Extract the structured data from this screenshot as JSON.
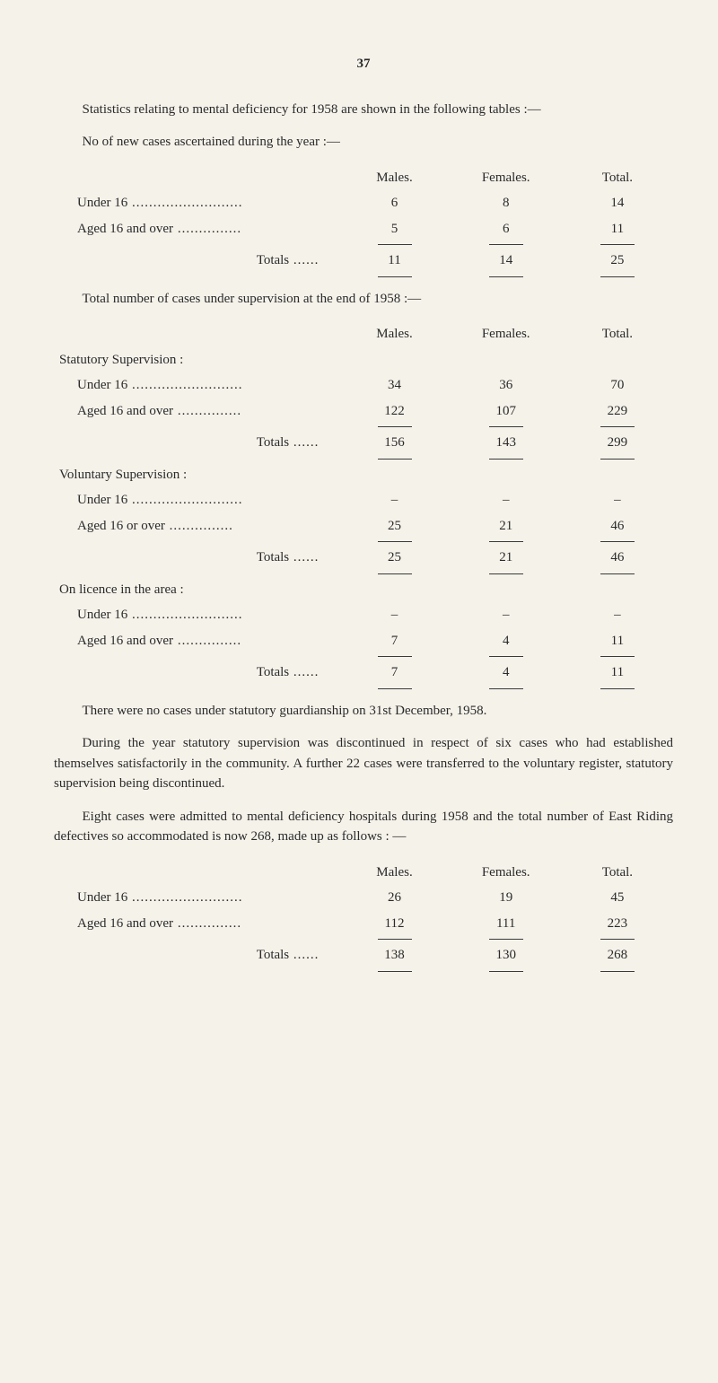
{
  "page_number": "37",
  "intro_para": "Statistics relating to mental deficiency for 1958 are shown in the following tables :—",
  "new_cases": {
    "heading": "No of new cases ascertained during the year :—",
    "cols": {
      "males": "Males.",
      "females": "Females.",
      "total": "Total."
    },
    "rows": {
      "under16_label": "Under 16",
      "under16": {
        "m": "6",
        "f": "8",
        "t": "14"
      },
      "aged16_label": "Aged 16 and over",
      "aged16": {
        "m": "5",
        "f": "6",
        "t": "11"
      },
      "totals_label": "Totals",
      "totals": {
        "m": "11",
        "f": "14",
        "t": "25"
      }
    }
  },
  "total_super": {
    "heading": "Total number of cases under supervision at the end of 1958 :—",
    "cols": {
      "males": "Males.",
      "females": "Females.",
      "total": "Total."
    },
    "statutory": {
      "label": "Statutory Supervision :",
      "under16_label": "Under 16",
      "under16": {
        "m": "34",
        "f": "36",
        "t": "70"
      },
      "aged16_label": "Aged 16 and over",
      "aged16": {
        "m": "122",
        "f": "107",
        "t": "229"
      },
      "totals_label": "Totals",
      "totals": {
        "m": "156",
        "f": "143",
        "t": "299"
      }
    },
    "voluntary": {
      "label": "Voluntary Supervision :",
      "under16_label": "Under 16",
      "under16": {
        "m": "–",
        "f": "–",
        "t": "–"
      },
      "aged16_label": "Aged 16 or over",
      "aged16": {
        "m": "25",
        "f": "21",
        "t": "46"
      },
      "totals_label": "Totals",
      "totals": {
        "m": "25",
        "f": "21",
        "t": "46"
      }
    },
    "licence": {
      "label": "On licence in the area :",
      "under16_label": "Under 16",
      "under16": {
        "m": "–",
        "f": "–",
        "t": "–"
      },
      "aged16_label": "Aged 16 and over",
      "aged16": {
        "m": "7",
        "f": "4",
        "t": "11"
      },
      "totals_label": "Totals",
      "totals": {
        "m": "7",
        "f": "4",
        "t": "11"
      }
    }
  },
  "para_guardianship": "There were no cases under statutory guardianship on 31st December, 1958.",
  "para_discontinued": "During the year statutory supervision was discontinued in respect of six cases who had established themselves satisfactorily in the community. A further 22 cases were transferred to the voluntary register, statutory supervision being discontinued.",
  "para_admitted": "Eight cases were admitted to mental deficiency hospitals during 1958 and the total number of East Riding defectives so accom­modated is now 268, made up as follows : —",
  "accommodated": {
    "cols": {
      "males": "Males.",
      "females": "Females.",
      "total": "Total."
    },
    "under16_label": "Under 16",
    "under16": {
      "m": "26",
      "f": "19",
      "t": "45"
    },
    "aged16_label": "Aged 16 and over",
    "aged16": {
      "m": "112",
      "f": "111",
      "t": "223"
    },
    "totals_label": "Totals",
    "totals": {
      "m": "138",
      "f": "130",
      "t": "268"
    }
  },
  "dots_long": " ..........................",
  "dots_med": " ...............",
  "dots_short": " ......"
}
